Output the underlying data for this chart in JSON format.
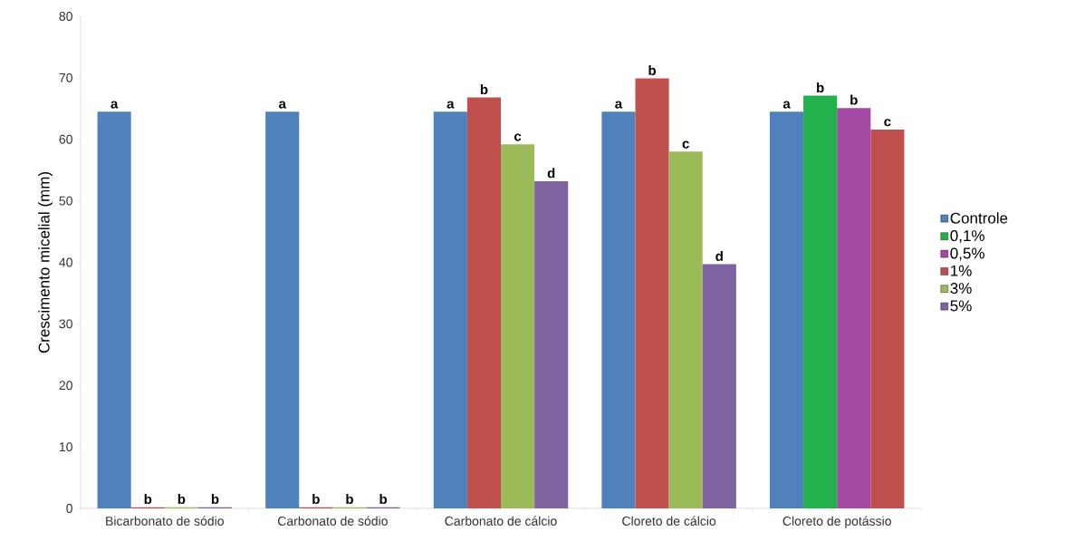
{
  "chart_data": {
    "type": "bar",
    "ylabel": "Crescimento micelial (mm)",
    "categories": [
      "Bicarbonato de sódio",
      "Carbonato de sódio",
      "Carbonato de cálcio",
      "Cloreto de cálcio",
      "Cloreto de potássio"
    ],
    "series": [
      {
        "name": "Controle",
        "color": "#4f81bd",
        "values": [
          64.5,
          64.5,
          64.5,
          64.5,
          64.5
        ],
        "value_labels": [
          "a",
          "a",
          "a",
          "a",
          "a"
        ]
      },
      {
        "name": "0,1%",
        "color": "#22b14c",
        "values": [
          null,
          null,
          null,
          null,
          67.1
        ],
        "value_labels": [
          null,
          null,
          null,
          null,
          "b"
        ]
      },
      {
        "name": "0,5%",
        "color": "#a349a4",
        "values": [
          null,
          null,
          null,
          null,
          65.1
        ],
        "value_labels": [
          null,
          null,
          null,
          null,
          "b"
        ]
      },
      {
        "name": "1%",
        "color": "#c0504d",
        "values": [
          0.2,
          0.2,
          66.8,
          69.9,
          61.6
        ],
        "value_labels": [
          "b",
          "b",
          "b",
          "b",
          "c"
        ]
      },
      {
        "name": "3%",
        "color": "#9bbb59",
        "values": [
          0.2,
          0.2,
          59.2,
          58.0,
          null
        ],
        "value_labels": [
          "b",
          "b",
          "c",
          "c",
          null
        ]
      },
      {
        "name": "5%",
        "color": "#8064a2",
        "values": [
          0.2,
          0.2,
          53.2,
          39.7,
          null
        ],
        "value_labels": [
          "b",
          "b",
          "d",
          "d",
          null
        ]
      }
    ],
    "ylim": [
      0,
      80
    ],
    "yticks": [
      0,
      10,
      20,
      30,
      40,
      50,
      60,
      70,
      80
    ],
    "legend": "right",
    "grid": false
  }
}
